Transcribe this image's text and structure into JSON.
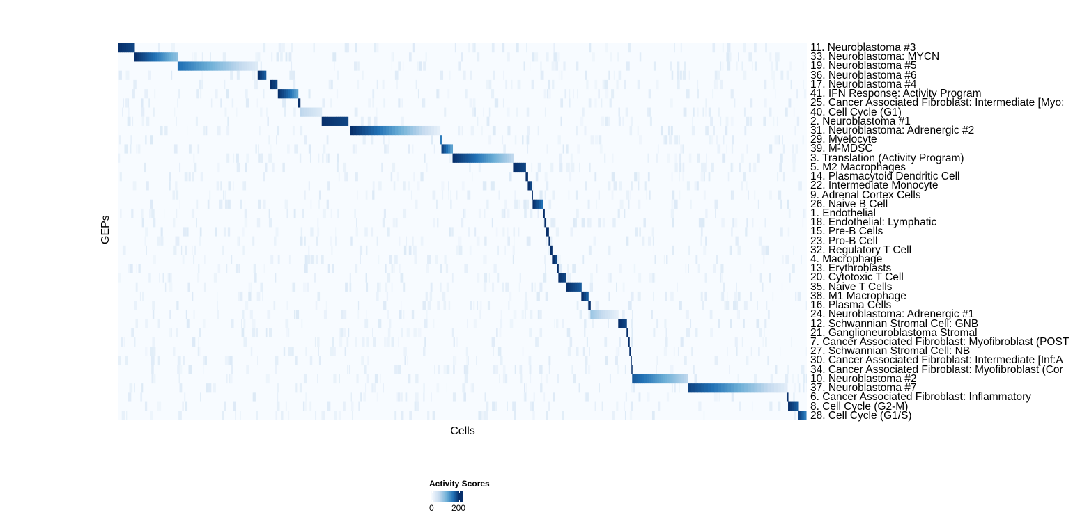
{
  "chart_data": {
    "type": "heatmap",
    "xlabel": "Cells",
    "ylabel": "GEPs",
    "n_cells": 990,
    "colorscale": {
      "low": "#f7fbff",
      "high": "#08306b"
    },
    "legend": {
      "title": "Activity Scores",
      "ticks": [
        "0",
        "200"
      ],
      "range": [
        0,
        220
      ],
      "placement": "bottom"
    },
    "rows": [
      {
        "label": "11. Neuroblastoma #3",
        "block": [
          0,
          24
        ],
        "peak": 220,
        "tail": 200
      },
      {
        "label": "33. Neuroblastoma: MYCN",
        "block": [
          24,
          86
        ],
        "peak": 220,
        "tail": 90
      },
      {
        "label": "19. Neuroblastoma #5",
        "block": [
          86,
          201
        ],
        "peak": 160,
        "tail": 30
      },
      {
        "label": "36. Neuroblastoma #6",
        "block": [
          201,
          213
        ],
        "peak": 220,
        "tail": 180
      },
      {
        "label": "17. Neuroblastoma #4",
        "block": [
          219,
          229
        ],
        "peak": 220,
        "tail": 200
      },
      {
        "label": "41. IFN Response: Activity Program",
        "block": [
          230,
          259
        ],
        "peak": 220,
        "tail": 120
      },
      {
        "label": "25. Cancer Associated Fibroblast: Intermediate [Myo:",
        "block": [
          259,
          262
        ],
        "peak": 220,
        "tail": 220
      },
      {
        "label": "40. Cell Cycle (G1)",
        "block": [
          262,
          293
        ],
        "peak": 60,
        "tail": 30
      },
      {
        "label": "2. Neuroblastoma #1",
        "block": [
          293,
          331
        ],
        "peak": 220,
        "tail": 200
      },
      {
        "label": "31. Neuroblastoma: Adrenergic #2",
        "block": [
          334,
          463
        ],
        "peak": 220,
        "tail": 20
      },
      {
        "label": "29. Myelocyte",
        "block": [
          463,
          465
        ],
        "peak": 150,
        "tail": 150
      },
      {
        "label": "39. M-MDSC",
        "block": [
          465,
          481
        ],
        "peak": 200,
        "tail": 120
      },
      {
        "label": "3. Translation (Activity Program)",
        "block": [
          481,
          568
        ],
        "peak": 220,
        "tail": 60
      },
      {
        "label": "5. M2 Macrophages",
        "block": [
          568,
          586
        ],
        "peak": 220,
        "tail": 200
      },
      {
        "label": "14. Plasmacytoid Dendritic Cell",
        "block": [
          586,
          589
        ],
        "peak": 220,
        "tail": 220
      },
      {
        "label": "22. Intermediate Monocyte",
        "block": [
          589,
          595
        ],
        "peak": 220,
        "tail": 200
      },
      {
        "label": "9. Adrenal Cortex Cells",
        "block": [
          595,
          596
        ],
        "peak": 220,
        "tail": 220
      },
      {
        "label": "26. Naive B Cell",
        "block": [
          596,
          611
        ],
        "peak": 220,
        "tail": 160
      },
      {
        "label": "1. Endothelial",
        "block": [
          611,
          613
        ],
        "peak": 220,
        "tail": 220
      },
      {
        "label": "18. Endothelial: Lymphatic",
        "block": [
          613,
          615
        ],
        "peak": 220,
        "tail": 220
      },
      {
        "label": "15. Pre-B Cells",
        "block": [
          615,
          619
        ],
        "peak": 220,
        "tail": 220
      },
      {
        "label": "23. Pro-B Cell",
        "block": [
          619,
          621
        ],
        "peak": 220,
        "tail": 220
      },
      {
        "label": "32. Regulatory T Cell",
        "block": [
          621,
          624
        ],
        "peak": 220,
        "tail": 200
      },
      {
        "label": "4. Macrophage",
        "block": [
          624,
          631
        ],
        "peak": 220,
        "tail": 200
      },
      {
        "label": "13. Erythroblasts",
        "block": [
          631,
          633
        ],
        "peak": 220,
        "tail": 220
      },
      {
        "label": "20. Cytotoxic T Cell",
        "block": [
          633,
          644
        ],
        "peak": 220,
        "tail": 200
      },
      {
        "label": "35. Naive T Cells",
        "block": [
          644,
          666
        ],
        "peak": 220,
        "tail": 180
      },
      {
        "label": "38. M1 Macrophage",
        "block": [
          666,
          676
        ],
        "peak": 220,
        "tail": 180
      },
      {
        "label": "16. Plasma Cells",
        "block": [
          676,
          679
        ],
        "peak": 220,
        "tail": 220
      },
      {
        "label": "24. Neuroblastoma: Adrenergic #1",
        "block": [
          679,
          719
        ],
        "peak": 80,
        "tail": 20
      },
      {
        "label": "12. Schwannian Stromal Cell: GNB",
        "block": [
          719,
          731
        ],
        "peak": 220,
        "tail": 200
      },
      {
        "label": "21. Ganglioneuroblastoma Stromal",
        "block": [
          731,
          733
        ],
        "peak": 220,
        "tail": 220
      },
      {
        "label": "7. Cancer Associated Fibroblast: Myofibroblast (POST",
        "block": [
          733,
          735
        ],
        "peak": 220,
        "tail": 220
      },
      {
        "label": "27. Schwannian Stromal Cell: NB",
        "block": [
          735,
          737
        ],
        "peak": 220,
        "tail": 220
      },
      {
        "label": "30. Cancer Associated Fibroblast: Intermediate [Inf:A",
        "block": [
          737,
          738
        ],
        "peak": 220,
        "tail": 220
      },
      {
        "label": "34. Cancer Associated Fibroblast: Myofibroblast (Cor",
        "block": [
          738,
          739
        ],
        "peak": 220,
        "tail": 220
      },
      {
        "label": "10. Neuroblastoma #2",
        "block": [
          739,
          819
        ],
        "peak": 180,
        "tail": 60
      },
      {
        "label": "37. Neuroblastoma #7",
        "block": [
          819,
          962
        ],
        "peak": 200,
        "tail": 25
      },
      {
        "label": "6. Cancer Associated Fibroblast: Inflammatory",
        "block": [
          962,
          963
        ],
        "peak": 220,
        "tail": 220
      },
      {
        "label": "8. Cell Cycle (G2-M)",
        "block": [
          963,
          978
        ],
        "peak": 220,
        "tail": 180
      },
      {
        "label": "28. Cell Cycle (G1/S)",
        "block": [
          978,
          989
        ],
        "peak": 200,
        "tail": 150
      }
    ]
  }
}
